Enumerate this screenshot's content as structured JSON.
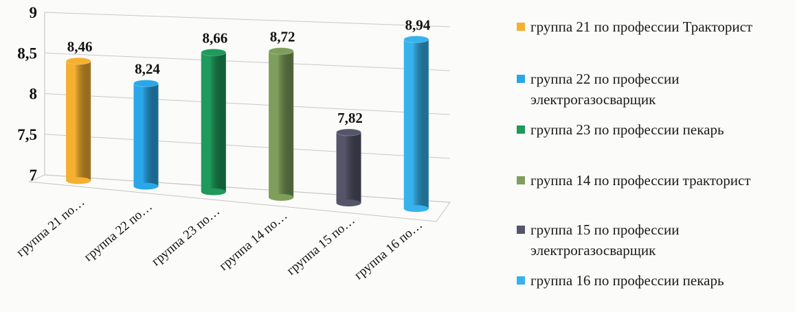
{
  "chart_data": {
    "type": "bar",
    "categories": [
      "группа 21 по…",
      "группа 22 по…",
      "группа 23 по…",
      "группа 14 по…",
      "группа 15 по…",
      "группа 16 по…"
    ],
    "values": [
      8.46,
      8.24,
      8.66,
      8.72,
      7.82,
      8.94
    ],
    "data_labels": [
      "8,46",
      "8,24",
      "8,66",
      "8,72",
      "7,82",
      "8,94"
    ],
    "colors": [
      "#f5b031",
      "#2aa7e8",
      "#1e9a5a",
      "#7e9f5b",
      "#55556a",
      "#36b2ec"
    ],
    "ylim": [
      7,
      9
    ],
    "yticks": [
      7,
      7.5,
      8,
      8.5,
      9
    ],
    "ytick_labels": [
      "7",
      "7,5",
      "8",
      "8,5",
      "9"
    ],
    "bar_shape": "cylinder",
    "three_d": true,
    "grid": true,
    "legend_placement": "right",
    "legend": [
      "группа 21 по профессии Тракторист",
      "группа 22 по профессии электрогазосварщик",
      "группа 23 по профессии пекарь",
      "группа 14 по профессии тракторист",
      "группа 15 по профессии электрогазосварщик",
      "группа 16 по профессии пекарь"
    ]
  }
}
